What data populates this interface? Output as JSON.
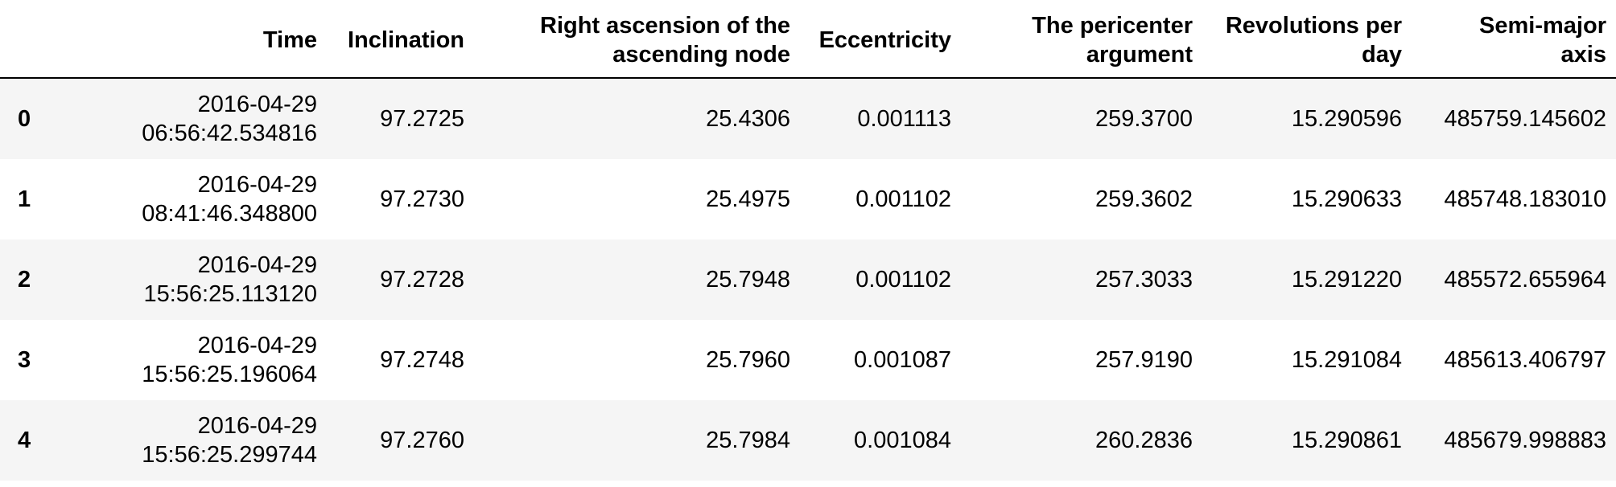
{
  "table": {
    "index_header": "",
    "columns": [
      "Time",
      "Inclination",
      "Right ascension of the\nascending node",
      "Eccentricity",
      "The pericenter\nargument",
      "Revolutions per\nday",
      "Semi-major\naxis"
    ],
    "rows": [
      {
        "index": "0",
        "cells": [
          "2016-04-29\n06:56:42.534816",
          "97.2725",
          "25.4306",
          "0.001113",
          "259.3700",
          "15.290596",
          "485759.145602"
        ]
      },
      {
        "index": "1",
        "cells": [
          "2016-04-29\n08:41:46.348800",
          "97.2730",
          "25.4975",
          "0.001102",
          "259.3602",
          "15.290633",
          "485748.183010"
        ]
      },
      {
        "index": "2",
        "cells": [
          "2016-04-29\n15:56:25.113120",
          "97.2728",
          "25.7948",
          "0.001102",
          "257.3033",
          "15.291220",
          "485572.655964"
        ]
      },
      {
        "index": "3",
        "cells": [
          "2016-04-29\n15:56:25.196064",
          "97.2748",
          "25.7960",
          "0.001087",
          "257.9190",
          "15.291084",
          "485613.406797"
        ]
      },
      {
        "index": "4",
        "cells": [
          "2016-04-29\n15:56:25.299744",
          "97.2760",
          "25.7984",
          "0.001084",
          "260.2836",
          "15.290861",
          "485679.998883"
        ]
      }
    ],
    "style": {
      "stripe_color": "#f5f5f5",
      "header_border_color": "#000000",
      "text_color": "#000000"
    }
  }
}
